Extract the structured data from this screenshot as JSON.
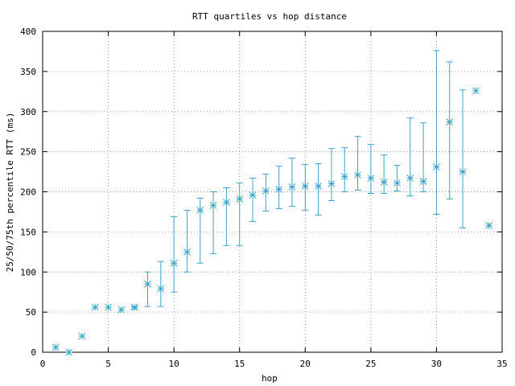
{
  "chart_data": {
    "type": "scatter",
    "title": "RTT quartiles vs hop distance",
    "xlabel": "hop",
    "ylabel": "25/50/75th percentile RTT (ms)",
    "xlim": [
      0,
      35
    ],
    "ylim": [
      0,
      400
    ],
    "xticks": [
      "0",
      "5",
      "10",
      "15",
      "20",
      "25",
      "30",
      "35"
    ],
    "yticks": [
      "0",
      "50",
      "100",
      "150",
      "200",
      "250",
      "300",
      "350",
      "400"
    ],
    "grid": true,
    "color": "#3ba3c8",
    "points": [
      {
        "x": 1,
        "median": 6,
        "low": 6,
        "high": 6
      },
      {
        "x": 2,
        "median": 0,
        "low": 0,
        "high": 0
      },
      {
        "x": 3,
        "median": 20,
        "low": 20,
        "high": 20
      },
      {
        "x": 4,
        "median": 56,
        "low": 56,
        "high": 56
      },
      {
        "x": 5,
        "median": 56,
        "low": 56,
        "high": 56
      },
      {
        "x": 6,
        "median": 53,
        "low": 53,
        "high": 53
      },
      {
        "x": 7,
        "median": 56,
        "low": 54,
        "high": 57
      },
      {
        "x": 8,
        "median": 85,
        "low": 57,
        "high": 100
      },
      {
        "x": 9,
        "median": 79,
        "low": 57,
        "high": 113
      },
      {
        "x": 10,
        "median": 111,
        "low": 75,
        "high": 169
      },
      {
        "x": 11,
        "median": 125,
        "low": 100,
        "high": 177
      },
      {
        "x": 12,
        "median": 177,
        "low": 111,
        "high": 192
      },
      {
        "x": 13,
        "median": 183,
        "low": 123,
        "high": 200
      },
      {
        "x": 14,
        "median": 187,
        "low": 133,
        "high": 205
      },
      {
        "x": 15,
        "median": 191,
        "low": 133,
        "high": 211
      },
      {
        "x": 16,
        "median": 196,
        "low": 163,
        "high": 217
      },
      {
        "x": 17,
        "median": 201,
        "low": 176,
        "high": 222
      },
      {
        "x": 18,
        "median": 203,
        "low": 179,
        "high": 232
      },
      {
        "x": 19,
        "median": 206,
        "low": 182,
        "high": 242
      },
      {
        "x": 20,
        "median": 207,
        "low": 177,
        "high": 234
      },
      {
        "x": 21,
        "median": 207,
        "low": 171,
        "high": 235
      },
      {
        "x": 22,
        "median": 210,
        "low": 189,
        "high": 254
      },
      {
        "x": 23,
        "median": 219,
        "low": 200,
        "high": 255
      },
      {
        "x": 24,
        "median": 221,
        "low": 202,
        "high": 269
      },
      {
        "x": 25,
        "median": 217,
        "low": 198,
        "high": 259
      },
      {
        "x": 26,
        "median": 212,
        "low": 198,
        "high": 246
      },
      {
        "x": 27,
        "median": 211,
        "low": 201,
        "high": 233
      },
      {
        "x": 28,
        "median": 217,
        "low": 195,
        "high": 292
      },
      {
        "x": 29,
        "median": 213,
        "low": 200,
        "high": 286
      },
      {
        "x": 30,
        "median": 231,
        "low": 172,
        "high": 376
      },
      {
        "x": 31,
        "median": 287,
        "low": 191,
        "high": 362
      },
      {
        "x": 32,
        "median": 225,
        "low": 155,
        "high": 327
      },
      {
        "x": 33,
        "median": 326,
        "low": 326,
        "high": 326
      },
      {
        "x": 34,
        "median": 158,
        "low": 158,
        "high": 158
      }
    ]
  }
}
